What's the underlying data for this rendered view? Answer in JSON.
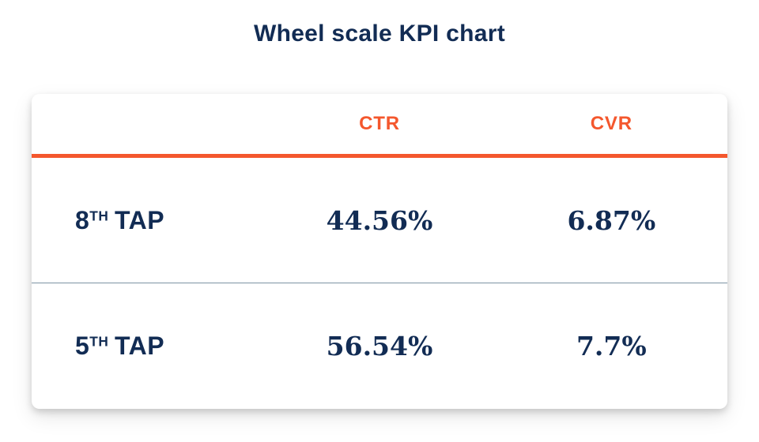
{
  "page": {
    "title": "Wheel scale KPI chart"
  },
  "colors": {
    "navy": "#122c54",
    "orange": "#f4572d",
    "divider_line": "#7d93a3",
    "card_bg": "#ffffff"
  },
  "table": {
    "headers": [
      {
        "label": "CTR"
      },
      {
        "label": "CVR"
      }
    ],
    "rows": [
      {
        "rank": "8",
        "ordinal": "TH",
        "label": "TAP",
        "ctr": "44.56%",
        "cvr": "6.87%"
      },
      {
        "rank": "5",
        "ordinal": "TH",
        "label": "TAP",
        "ctr": "56.54%",
        "cvr": "7.7%"
      }
    ]
  },
  "chart_data": {
    "type": "table",
    "title": "Wheel scale KPI chart",
    "categories": [
      "8th TAP",
      "5th TAP"
    ],
    "series": [
      {
        "name": "CTR",
        "values": [
          44.56,
          56.54
        ]
      },
      {
        "name": "CVR",
        "values": [
          6.87,
          7.7
        ]
      }
    ],
    "legend_position": "top",
    "grid": false
  }
}
